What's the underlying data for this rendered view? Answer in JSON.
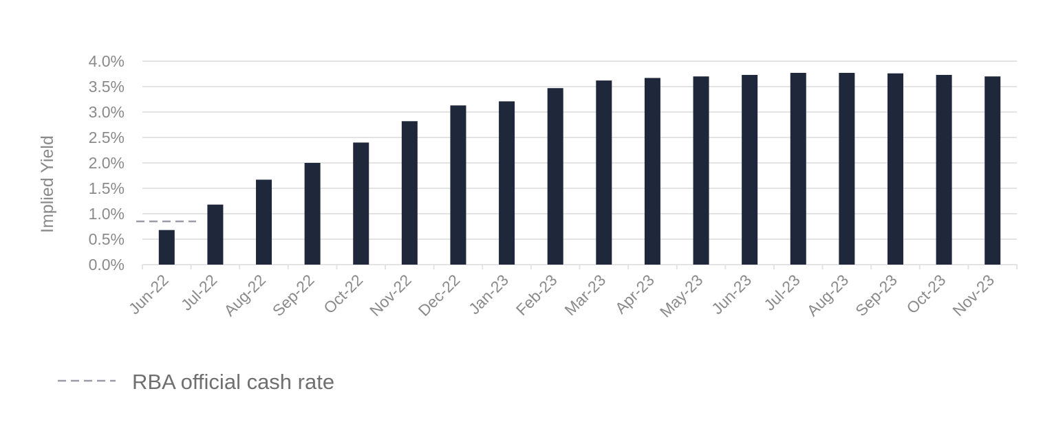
{
  "chart_data": {
    "type": "bar",
    "categories": [
      "Jun-22",
      "Jul-22",
      "Aug-22",
      "Sep-22",
      "Oct-22",
      "Nov-22",
      "Dec-22",
      "Jan-23",
      "Feb-23",
      "Mar-23",
      "Apr-23",
      "May-23",
      "Jun-23",
      "Jul-23",
      "Aug-23",
      "Sep-23",
      "Oct-23",
      "Nov-23"
    ],
    "values": [
      0.68,
      1.18,
      1.67,
      2.0,
      2.4,
      2.82,
      3.13,
      3.21,
      3.47,
      3.62,
      3.67,
      3.7,
      3.73,
      3.77,
      3.77,
      3.76,
      3.73,
      3.7
    ],
    "ylabel": "Implied Yield",
    "xlabel": "",
    "ylim": [
      0,
      4.0
    ],
    "y_ticks": [
      "0.0%",
      "0.5%",
      "1.0%",
      "1.5%",
      "2.0%",
      "2.5%",
      "3.0%",
      "3.5%",
      "4.0%"
    ],
    "y_tick_values": [
      0,
      0.5,
      1.0,
      1.5,
      2.0,
      2.5,
      3.0,
      3.5,
      4.0
    ],
    "reference_line": {
      "name": "RBA official cash rate",
      "value": 0.85,
      "style": "dashed",
      "spans_categories": [
        "Jun-22"
      ]
    },
    "legend": {
      "position": "bottom-left",
      "entries": [
        "RBA official cash rate"
      ]
    },
    "grid": true,
    "colors": {
      "bar": "#1f273a",
      "grid": "#e3e3e3",
      "reference_line": "#9a9aa8",
      "text": "#8a8a8a"
    }
  }
}
